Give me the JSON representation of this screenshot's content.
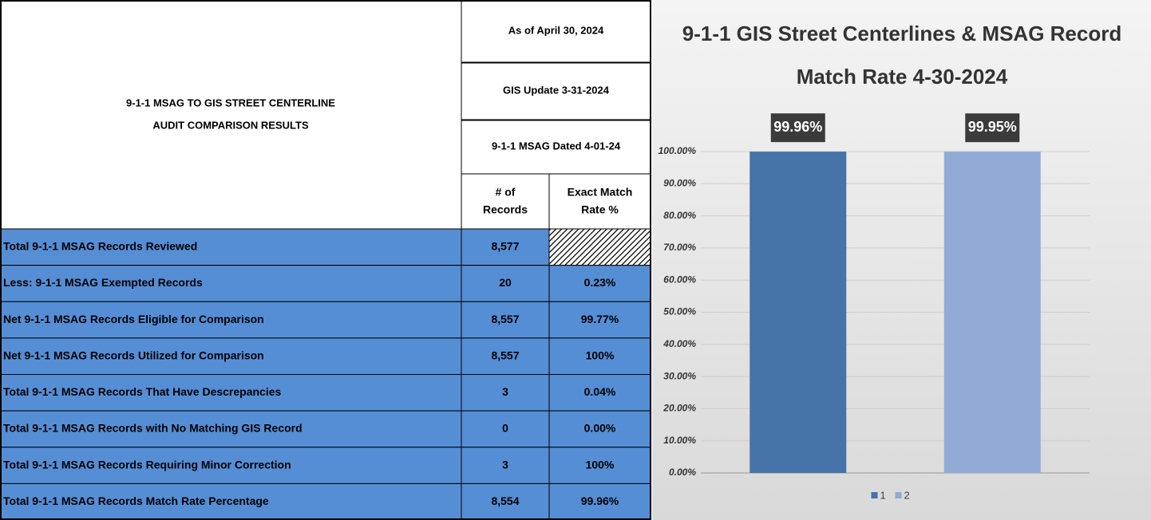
{
  "table": {
    "title": [
      "9-1-1 MSAG TO GIS STREET CENTERLINE",
      "AUDIT COMPARISON RESULTS"
    ],
    "header_rows": [
      "As of April 30, 2024",
      "GIS Update 3-31-2024",
      "9-1-1 MSAG Dated 4-01-24"
    ],
    "columns": [
      [
        "# of",
        "Records"
      ],
      [
        "Exact Match",
        "Rate %"
      ]
    ],
    "rows": [
      [
        "Total 9-1-1 MSAG Records Reviewed",
        "8,577",
        null
      ],
      [
        "Less:  9-1-1 MSAG Exempted Records",
        "20",
        "0.23%"
      ],
      [
        "Net 9-1-1 MSAG Records Eligible for Comparison",
        "8,557",
        "99.77%"
      ],
      [
        "Net 9-1-1 MSAG Records Utilized for Comparison",
        "8,557",
        "100%"
      ],
      [
        "Total 9-1-1 MSAG Records That Have Descrepancies",
        "3",
        "0.04%"
      ],
      [
        "Total 9-1-1 MSAG Records with No Matching GIS Record",
        "0",
        "0.00%"
      ],
      [
        "Total 9-1-1 MSAG Records Requiring Minor Correction",
        "3",
        "100%"
      ],
      [
        "Total 9-1-1 MSAG Records Match Rate Percentage",
        "8,554",
        "99.96%"
      ]
    ]
  },
  "chart_data": {
    "type": "bar",
    "title": [
      "9-1-1 GIS Street Centerlines & MSAG Record",
      "Match Rate 4-30-2024"
    ],
    "categories": [
      null
    ],
    "series": [
      {
        "name": "1",
        "color": "#4673a8",
        "values": [
          99.96
        ],
        "value_labels": [
          "99.96%"
        ]
      },
      {
        "name": "2",
        "color": "#93aad6",
        "values": [
          99.95
        ],
        "value_labels": [
          "99.95%"
        ]
      }
    ],
    "ylim": [
      0,
      100
    ],
    "yticks": [
      {
        "value": 0,
        "label": "0.00%"
      },
      {
        "value": 10,
        "label": "10.00%"
      },
      {
        "value": 20,
        "label": "20.00%"
      },
      {
        "value": 30,
        "label": "30.00%"
      },
      {
        "value": 40,
        "label": "40.00%"
      },
      {
        "value": 50,
        "label": "50.00%"
      },
      {
        "value": 60,
        "label": "60.00%"
      },
      {
        "value": 70,
        "label": "70.00%"
      },
      {
        "value": 80,
        "label": "80.00%"
      },
      {
        "value": 90,
        "label": "90.00%"
      },
      {
        "value": 100,
        "label": "100.00%"
      }
    ],
    "grid": true,
    "legend": "bottom"
  }
}
